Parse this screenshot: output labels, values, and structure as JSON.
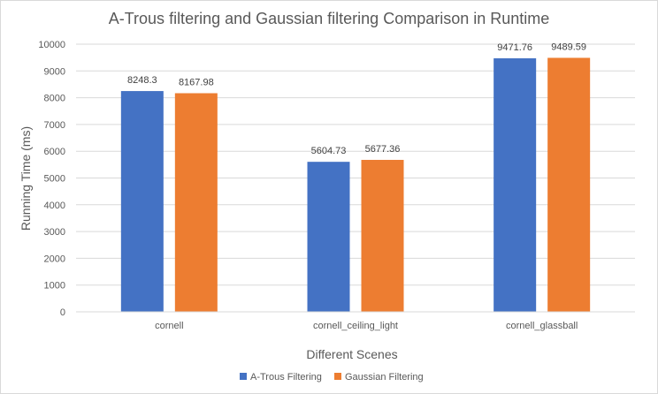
{
  "chart_data": {
    "type": "bar",
    "title": "A-Trous filtering and Gaussian filtering Comparison in Runtime",
    "xlabel": "Different Scenes",
    "ylabel": "Running Time (ms)",
    "ylim": [
      0,
      10000
    ],
    "yticks": [
      0,
      1000,
      2000,
      3000,
      4000,
      5000,
      6000,
      7000,
      8000,
      9000,
      10000
    ],
    "ytick_labels": [
      "0",
      "1000",
      "2000",
      "3000",
      "4000",
      "5000",
      "6000",
      "7000",
      "8000",
      "9000",
      "10000"
    ],
    "categories": [
      "cornell",
      "cornell_ceiling_light",
      "cornell_glassball"
    ],
    "series": [
      {
        "name": "A-Trous Filtering",
        "color": "#4472c4",
        "values": [
          8248.3,
          5604.73,
          9471.76
        ],
        "labels": [
          "8248.3",
          "5604.73",
          "9471.76"
        ]
      },
      {
        "name": "Gaussian Filtering",
        "color": "#ed7d31",
        "values": [
          8167.98,
          5677.36,
          9489.59
        ],
        "labels": [
          "8167.98",
          "5677.36",
          "9489.59"
        ]
      }
    ],
    "grid": true,
    "legend_position": "bottom"
  }
}
